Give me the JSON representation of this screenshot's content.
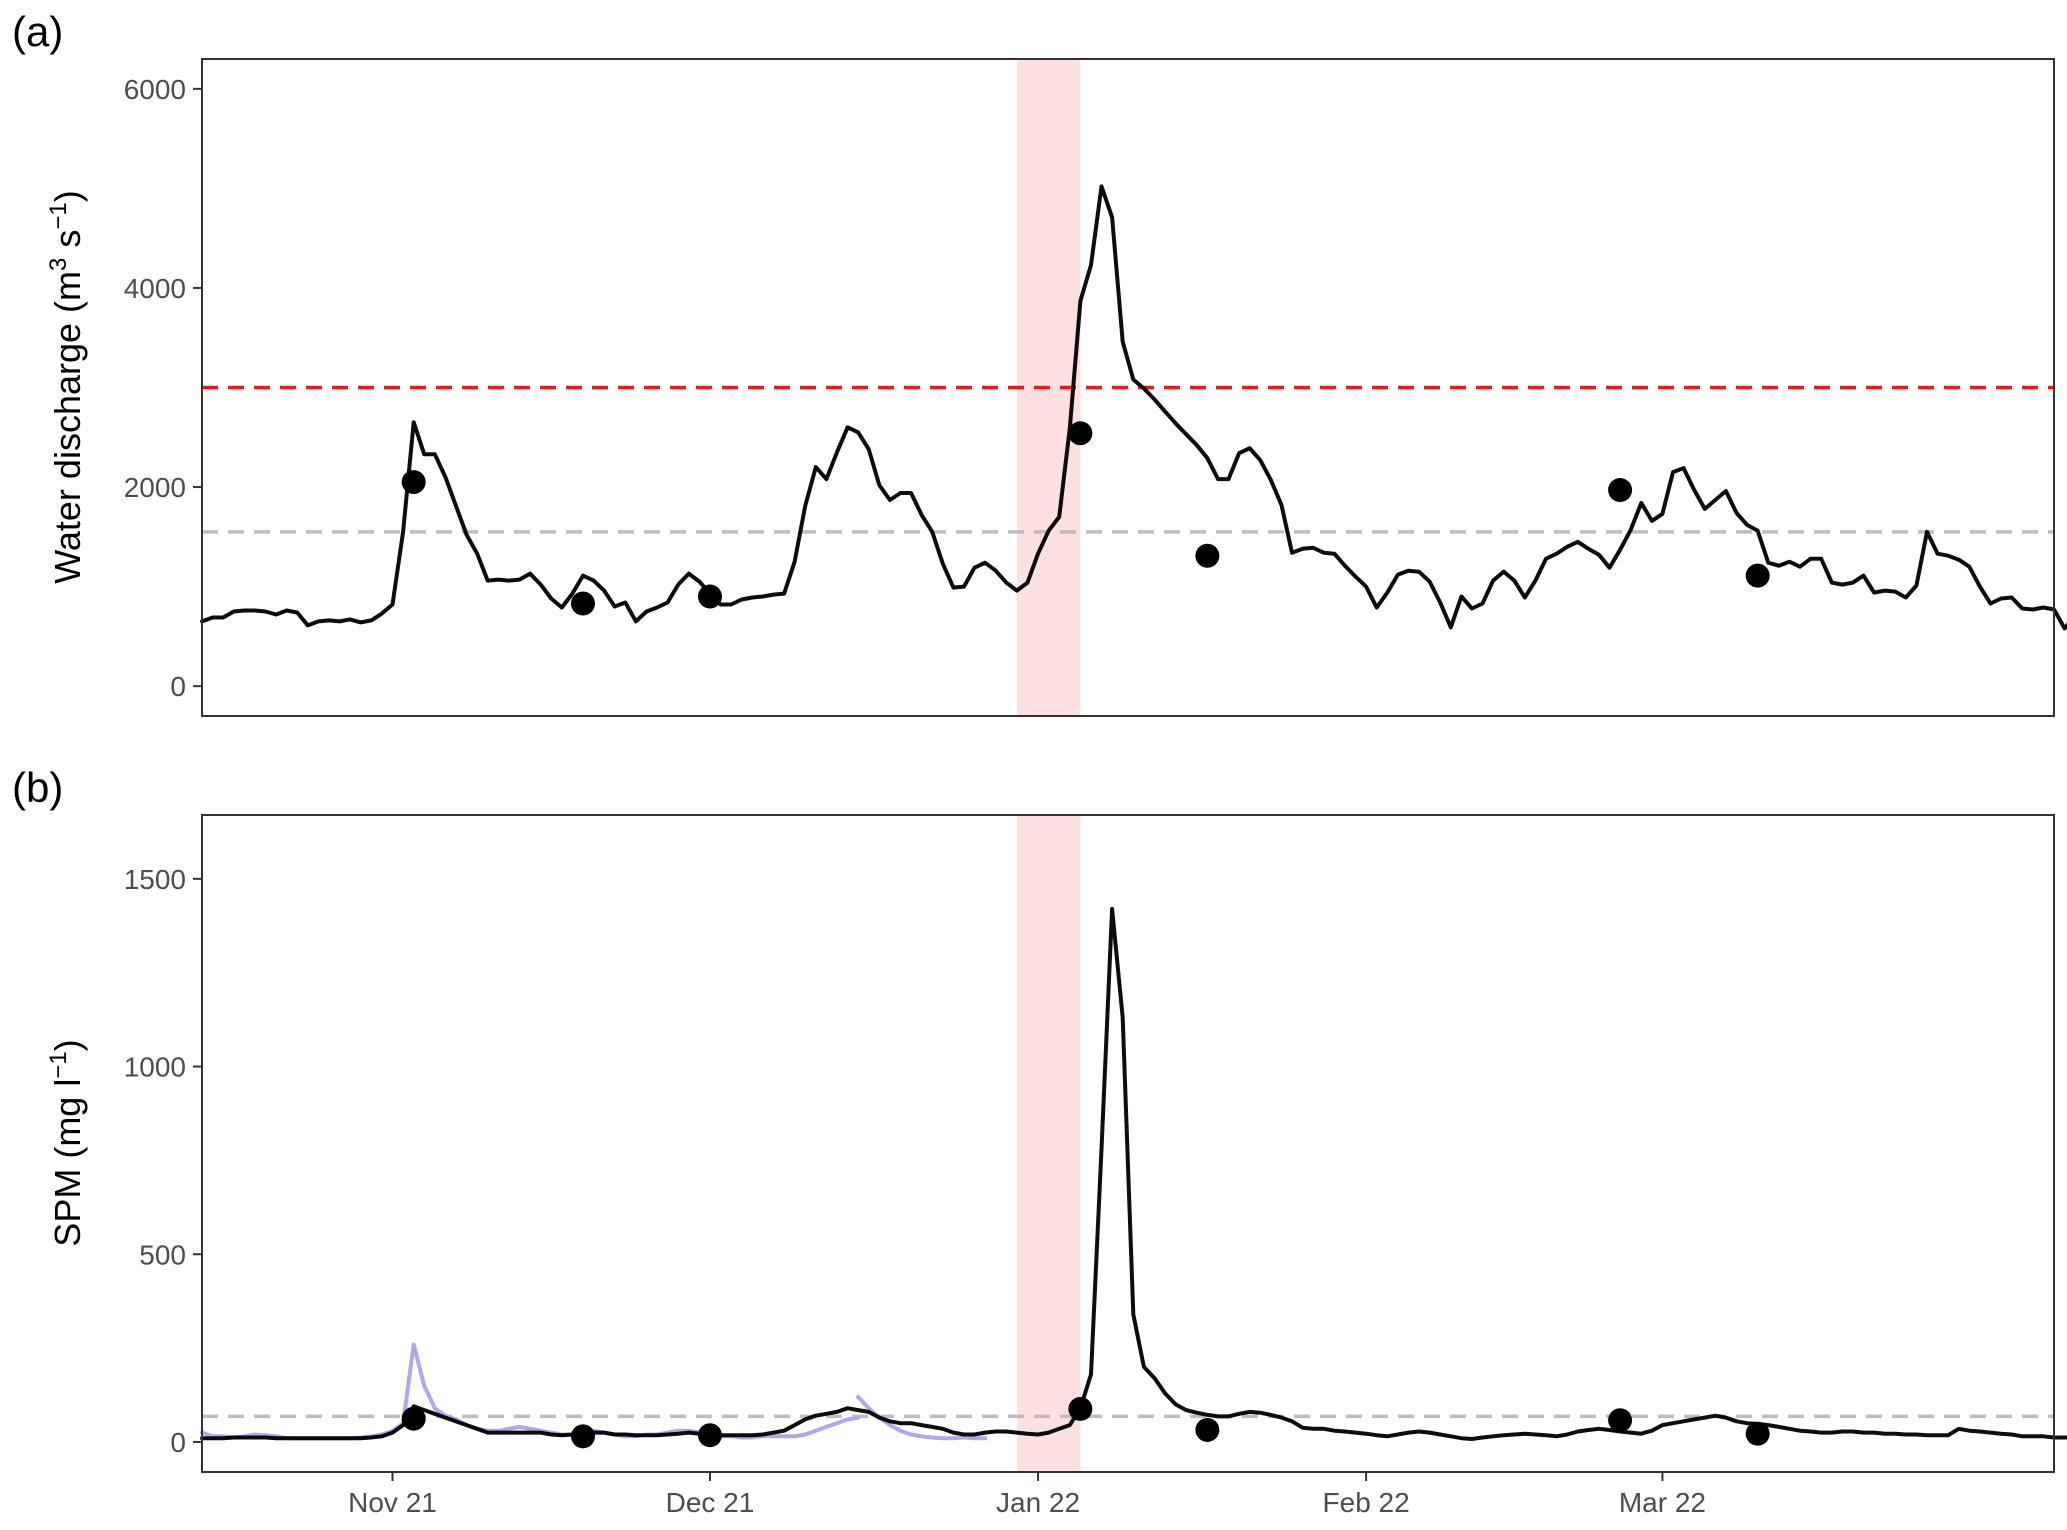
{
  "chart_data": [
    {
      "type": "line",
      "panel_label": "(a)",
      "ylabel": "Water discharge (m",
      "ylabel_sup1": "3",
      "ylabel_mid": " s",
      "ylabel_sup2": "−1",
      "ylabel_end": ")",
      "x_axis_type": "date",
      "xlim": [
        "2021-10-14",
        "2022-04-07"
      ],
      "ylim": [
        -300,
        6300
      ],
      "y_ticks": [
        0,
        2000,
        4000,
        6000
      ],
      "y_tick_labels": [
        "0",
        "2000",
        "4000",
        "6000"
      ],
      "x_axis_labels_shown": false,
      "grid": false,
      "highlight_band": {
        "start": "2021-12-30",
        "end": "2022-01-05",
        "color": "#fde0e0"
      },
      "reference_lines": [
        {
          "value": 3000,
          "color": "#e41a1c",
          "style": "dashed"
        },
        {
          "value": 1550,
          "color": "#bdbdbd",
          "style": "dashed"
        }
      ],
      "series": [
        {
          "color": "#000000",
          "start_date": "2021-10-14",
          "step_days": 1,
          "values": [
            650,
            690,
            690,
            750,
            760,
            760,
            750,
            720,
            760,
            740,
            610,
            650,
            660,
            650,
            670,
            640,
            660,
            730,
            820,
            1550,
            2650,
            2330,
            2330,
            2100,
            1810,
            1520,
            1330,
            1060,
            1070,
            1060,
            1070,
            1130,
            1020,
            880,
            790,
            930,
            1110,
            1060,
            960,
            800,
            840,
            650,
            750,
            790,
            840,
            1020,
            1130,
            1050,
            930,
            820,
            820,
            870,
            890,
            900,
            920,
            930,
            1250,
            1810,
            2200,
            2080,
            2350,
            2600,
            2550,
            2380,
            2020,
            1870,
            1940,
            1940,
            1720,
            1550,
            1230,
            990,
            1000,
            1190,
            1240,
            1160,
            1040,
            960,
            1040,
            1330,
            1560,
            1700,
            2590,
            3870,
            4230,
            5020,
            4710,
            3460,
            3080,
            2990,
            2880,
            2760,
            2640,
            2530,
            2420,
            2290,
            2080,
            2080,
            2340,
            2390,
            2270,
            2070,
            1820,
            1340,
            1380,
            1390,
            1340,
            1330,
            1210,
            1100,
            1000,
            790,
            940,
            1120,
            1160,
            1150,
            1050,
            840,
            590,
            900,
            780,
            830,
            1060,
            1150,
            1060,
            890,
            1060,
            1280,
            1330,
            1400,
            1450,
            1380,
            1320,
            1190,
            1370,
            1570,
            1840,
            1660,
            1730,
            2150,
            2190,
            1970,
            1780,
            1870,
            1960,
            1740,
            1620,
            1560,
            1240,
            1210,
            1250,
            1200,
            1280,
            1280,
            1040,
            1020,
            1040,
            1110,
            940,
            960,
            950,
            890,
            1010,
            1550,
            1330,
            1310,
            1270,
            1200,
            1000,
            830,
            880,
            890,
            780,
            770,
            790,
            770,
            580,
            700,
            700
          ]
        }
      ],
      "points": {
        "color": "#000000",
        "dates": [
          "2021-11-03",
          "2021-11-19",
          "2021-12-01",
          "2022-01-05",
          "2022-01-17",
          "2022-02-25",
          "2022-03-10"
        ],
        "values": [
          2050,
          830,
          900,
          2540,
          1310,
          1970,
          1110
        ]
      }
    },
    {
      "type": "line",
      "panel_label": "(b)",
      "ylabel": "SPM (mg l",
      "ylabel_sup": "−1",
      "ylabel_end": ")",
      "x_axis_type": "date",
      "xlim": [
        "2021-10-14",
        "2022-04-07"
      ],
      "ylim": [
        -80,
        1670
      ],
      "y_ticks": [
        0,
        500,
        1000,
        1500
      ],
      "y_tick_labels": [
        "0",
        "500",
        "1000",
        "1500"
      ],
      "x_ticks": [
        "2021-11-01",
        "2021-12-01",
        "2022-01-01",
        "2022-02-01",
        "2022-03-01"
      ],
      "x_tick_labels": [
        "Nov 21",
        "Dec 21",
        "Jan 22",
        "Feb 22",
        "Mar 22"
      ],
      "grid": false,
      "highlight_band": {
        "start": "2021-12-30",
        "end": "2022-01-05",
        "color": "#fde0e0"
      },
      "reference_lines": [
        {
          "value": 68,
          "color": "#bdbdbd",
          "style": "dashed"
        }
      ],
      "series": [
        {
          "color": "#aaaaee",
          "start_date": "2021-10-14",
          "step_days": 1,
          "values": [
            25,
            15,
            15,
            12,
            15,
            20,
            18,
            15,
            10,
            10,
            10,
            10,
            10,
            10,
            10,
            12,
            15,
            20,
            30,
            50,
            260,
            150,
            90,
            70,
            60,
            45,
            35,
            30,
            30,
            35,
            40,
            35,
            30,
            25,
            20,
            20,
            25,
            30,
            25,
            20,
            15,
            15,
            20,
            20,
            25,
            30,
            30,
            25,
            20,
            15,
            15,
            12,
            12,
            15,
            15,
            15,
            15,
            20,
            30,
            40,
            50,
            60,
            65,
            null,
            null,
            null,
            null,
            null,
            null,
            null,
            null,
            null,
            null,
            null,
            null,
            null,
            null,
            null,
            null,
            null,
            null,
            null,
            null,
            null,
            null,
            null,
            null,
            null,
            null,
            null,
            null,
            null,
            null,
            null,
            null,
            null,
            null,
            null,
            null,
            null,
            null,
            null,
            null,
            null,
            null,
            null,
            null,
            null,
            null,
            null,
            null,
            null,
            null,
            null,
            null,
            null,
            null,
            null,
            null,
            null,
            null,
            null,
            null,
            null,
            null,
            null,
            null,
            null,
            null,
            null,
            null,
            null,
            null,
            null,
            null,
            null,
            null,
            null,
            null,
            null,
            null,
            null,
            null,
            null,
            null,
            null,
            null,
            null,
            null,
            null,
            null,
            null,
            null,
            null,
            null,
            null,
            null,
            null,
            null,
            null,
            null,
            null,
            null,
            null,
            null,
            null,
            null,
            null,
            null,
            null,
            null,
            null,
            null,
            null,
            null,
            null
          ]
        },
        {
          "color": "#aaaaee",
          "start_date": "2021-12-15",
          "step_days": 1,
          "values": [
            120,
            90,
            65,
            45,
            30,
            20,
            15,
            12,
            10,
            10,
            12,
            10,
            10
          ]
        },
        {
          "color": "#000000",
          "start_date": "2021-10-14",
          "step_days": 1,
          "values": [
            10,
            10,
            10,
            12,
            12,
            12,
            12,
            10,
            10,
            10,
            10,
            10,
            10,
            10,
            10,
            10,
            12,
            15,
            25,
            45,
            95,
            85,
            75,
            65,
            55,
            45,
            35,
            25,
            25,
            25,
            25,
            25,
            25,
            20,
            18,
            20,
            25,
            25,
            25,
            20,
            20,
            18,
            18,
            18,
            20,
            22,
            25,
            22,
            20,
            18,
            18,
            18,
            18,
            20,
            25,
            30,
            45,
            60,
            70,
            75,
            80,
            90,
            85,
            80,
            65,
            55,
            50,
            50,
            45,
            40,
            35,
            25,
            20,
            20,
            25,
            28,
            28,
            25,
            22,
            20,
            25,
            35,
            45,
            90,
            180,
            780,
            1420,
            1130,
            340,
            200,
            170,
            130,
            100,
            85,
            78,
            72,
            68,
            68,
            75,
            80,
            78,
            72,
            65,
            55,
            38,
            35,
            35,
            30,
            28,
            25,
            22,
            18,
            15,
            20,
            25,
            28,
            25,
            20,
            15,
            10,
            8,
            12,
            15,
            18,
            20,
            22,
            20,
            18,
            15,
            20,
            28,
            32,
            35,
            32,
            28,
            25,
            22,
            30,
            45,
            50,
            55,
            60,
            65,
            70,
            65,
            55,
            50,
            48,
            45,
            40,
            35,
            30,
            28,
            25,
            25,
            28,
            28,
            25,
            25,
            22,
            22,
            20,
            20,
            18,
            18,
            18,
            35,
            30,
            28,
            25,
            22,
            20,
            15,
            15,
            15,
            12,
            12,
            12,
            10,
            10,
            15,
            15
          ]
        }
      ],
      "points": {
        "color": "#000000",
        "dates": [
          "2021-11-03",
          "2021-11-19",
          "2021-12-01",
          "2022-01-05",
          "2022-01-17",
          "2022-02-25",
          "2022-03-10"
        ],
        "values": [
          62,
          15,
          18,
          88,
          32,
          58,
          22
        ]
      }
    }
  ]
}
